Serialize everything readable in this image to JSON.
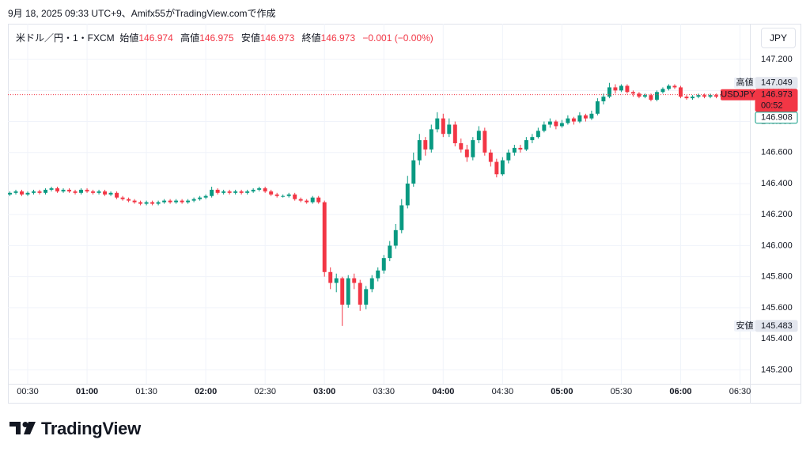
{
  "header": "9月 18, 2025 09:33 UTC+9、Amifx55がTradingView.comで作成",
  "logo": "TradingView",
  "currency_button": "JPY",
  "legend": {
    "symbol": "米ドル／円・1・FXCM",
    "open_label": "始値",
    "open": 146.974,
    "high_label": "高値",
    "high": 146.975,
    "low_label": "安値",
    "low": 146.973,
    "close_label": "終値",
    "close": 146.973,
    "change": "−0.001 (−0.00%)"
  },
  "chart_data": {
    "type": "candlestick",
    "up_color": "#089981",
    "down_color": "#f23645",
    "grid": true,
    "xlim": [
      "00:20",
      "06:35"
    ],
    "xticks": [
      "00:30",
      "01:00",
      "01:30",
      "02:00",
      "02:30",
      "03:00",
      "03:30",
      "04:00",
      "04:30",
      "05:00",
      "05:30",
      "06:00",
      "06:30"
    ],
    "ylim": [
      145.11,
      147.43
    ],
    "yticks": [
      {
        "value": 147.2,
        "label": "147.200"
      },
      {
        "value": 147.0,
        "label": "147.000"
      },
      {
        "value": 146.8,
        "label": "146.800"
      },
      {
        "value": 146.6,
        "label": "146.600"
      },
      {
        "value": 146.4,
        "label": "146.400"
      },
      {
        "value": 146.2,
        "label": "146.200"
      },
      {
        "value": 146.0,
        "label": "146.000"
      },
      {
        "value": 145.8,
        "label": "145.800"
      },
      {
        "value": 145.6,
        "label": "145.600"
      },
      {
        "value": 145.4,
        "label": "145.400"
      },
      {
        "value": 145.2,
        "label": "145.200"
      }
    ],
    "x": [
      "00:21",
      "00:24",
      "00:27",
      "00:30",
      "00:33",
      "00:36",
      "00:39",
      "00:42",
      "00:45",
      "00:48",
      "00:51",
      "00:54",
      "00:57",
      "01:00",
      "01:03",
      "01:06",
      "01:09",
      "01:12",
      "01:15",
      "01:18",
      "01:21",
      "01:24",
      "01:27",
      "01:30",
      "01:33",
      "01:36",
      "01:39",
      "01:42",
      "01:45",
      "01:48",
      "01:51",
      "01:54",
      "01:57",
      "02:00",
      "02:03",
      "02:06",
      "02:09",
      "02:12",
      "02:15",
      "02:18",
      "02:21",
      "02:24",
      "02:27",
      "02:30",
      "02:33",
      "02:36",
      "02:39",
      "02:42",
      "02:45",
      "02:48",
      "02:51",
      "02:54",
      "02:57",
      "03:00",
      "03:03",
      "03:06",
      "03:09",
      "03:12",
      "03:15",
      "03:18",
      "03:21",
      "03:24",
      "03:27",
      "03:30",
      "03:33",
      "03:36",
      "03:39",
      "03:42",
      "03:45",
      "03:48",
      "03:51",
      "03:54",
      "03:57",
      "04:00",
      "04:03",
      "04:06",
      "04:09",
      "04:12",
      "04:15",
      "04:18",
      "04:21",
      "04:24",
      "04:27",
      "04:30",
      "04:33",
      "04:36",
      "04:39",
      "04:42",
      "04:45",
      "04:48",
      "04:51",
      "04:54",
      "04:57",
      "05:00",
      "05:03",
      "05:06",
      "05:09",
      "05:12",
      "05:15",
      "05:18",
      "05:21",
      "05:24",
      "05:27",
      "05:30",
      "05:33",
      "05:36",
      "05:39",
      "05:42",
      "05:45",
      "05:48",
      "05:51",
      "05:54",
      "05:57",
      "06:00",
      "06:03",
      "06:06",
      "06:09",
      "06:12",
      "06:15",
      "06:18",
      "06:21",
      "06:24",
      "06:27",
      "06:30",
      "06:33"
    ],
    "ohlc": [
      [
        146.33,
        146.35,
        146.32,
        146.34
      ],
      [
        146.34,
        146.36,
        146.33,
        146.35
      ],
      [
        146.35,
        146.36,
        146.32,
        146.33
      ],
      [
        146.33,
        146.35,
        146.32,
        146.34
      ],
      [
        146.34,
        146.36,
        146.33,
        146.35
      ],
      [
        146.35,
        146.36,
        146.33,
        146.34
      ],
      [
        146.34,
        146.37,
        146.33,
        146.36
      ],
      [
        146.36,
        146.38,
        146.35,
        146.37
      ],
      [
        146.37,
        146.38,
        146.34,
        146.35
      ],
      [
        146.35,
        146.37,
        146.34,
        146.36
      ],
      [
        146.36,
        146.37,
        146.34,
        146.35
      ],
      [
        146.35,
        146.36,
        146.33,
        146.34
      ],
      [
        146.34,
        146.37,
        146.33,
        146.36
      ],
      [
        146.36,
        146.37,
        146.34,
        146.35
      ],
      [
        146.35,
        146.36,
        146.33,
        146.34
      ],
      [
        146.34,
        146.36,
        146.33,
        146.35
      ],
      [
        146.35,
        146.36,
        146.32,
        146.33
      ],
      [
        146.33,
        146.35,
        146.32,
        146.34
      ],
      [
        146.34,
        146.35,
        146.3,
        146.31
      ],
      [
        146.31,
        146.32,
        146.29,
        146.3
      ],
      [
        146.3,
        146.31,
        146.28,
        146.29
      ],
      [
        146.29,
        146.3,
        146.27,
        146.28
      ],
      [
        146.28,
        146.29,
        146.26,
        146.27
      ],
      [
        146.27,
        146.29,
        146.26,
        146.28
      ],
      [
        146.28,
        146.29,
        146.26,
        146.27
      ],
      [
        146.27,
        146.29,
        146.26,
        146.28
      ],
      [
        146.28,
        146.3,
        146.27,
        146.29
      ],
      [
        146.29,
        146.3,
        146.27,
        146.28
      ],
      [
        146.28,
        146.3,
        146.27,
        146.29
      ],
      [
        146.29,
        146.3,
        146.27,
        146.28
      ],
      [
        146.28,
        146.3,
        146.27,
        146.29
      ],
      [
        146.29,
        146.31,
        146.28,
        146.3
      ],
      [
        146.3,
        146.32,
        146.29,
        146.31
      ],
      [
        146.31,
        146.33,
        146.3,
        146.32
      ],
      [
        146.32,
        146.38,
        146.31,
        146.36
      ],
      [
        146.36,
        146.37,
        146.33,
        146.34
      ],
      [
        146.34,
        146.36,
        146.33,
        146.35
      ],
      [
        146.35,
        146.36,
        146.33,
        146.34
      ],
      [
        146.34,
        146.36,
        146.33,
        146.35
      ],
      [
        146.35,
        146.36,
        146.33,
        146.34
      ],
      [
        146.34,
        146.36,
        146.33,
        146.35
      ],
      [
        146.35,
        146.37,
        146.34,
        146.36
      ],
      [
        146.36,
        146.38,
        146.35,
        146.37
      ],
      [
        146.37,
        146.38,
        146.34,
        146.35
      ],
      [
        146.35,
        146.36,
        146.32,
        146.33
      ],
      [
        146.33,
        146.34,
        146.31,
        146.32
      ],
      [
        146.32,
        146.33,
        146.31,
        146.32
      ],
      [
        146.32,
        146.34,
        146.31,
        146.33
      ],
      [
        146.33,
        146.34,
        146.29,
        146.3
      ],
      [
        146.3,
        146.31,
        146.28,
        146.29
      ],
      [
        146.29,
        146.3,
        146.27,
        146.28
      ],
      [
        146.28,
        146.32,
        146.27,
        146.31
      ],
      [
        146.31,
        146.32,
        146.27,
        146.28
      ],
      [
        146.28,
        146.29,
        145.8,
        145.83
      ],
      [
        145.83,
        145.86,
        145.72,
        145.76
      ],
      [
        145.76,
        145.82,
        145.7,
        145.79
      ],
      [
        145.79,
        145.8,
        145.483,
        145.62
      ],
      [
        145.62,
        145.81,
        145.6,
        145.79
      ],
      [
        145.79,
        145.82,
        145.72,
        145.76
      ],
      [
        145.76,
        145.78,
        145.58,
        145.62
      ],
      [
        145.62,
        145.74,
        145.59,
        145.72
      ],
      [
        145.72,
        145.81,
        145.7,
        145.79
      ],
      [
        145.79,
        145.86,
        145.77,
        145.84
      ],
      [
        145.84,
        145.94,
        145.82,
        145.92
      ],
      [
        145.92,
        146.03,
        145.9,
        146.0
      ],
      [
        146.0,
        146.14,
        145.98,
        146.1
      ],
      [
        146.1,
        146.3,
        146.08,
        146.26
      ],
      [
        146.26,
        146.45,
        146.24,
        146.4
      ],
      [
        146.4,
        146.6,
        146.38,
        146.55
      ],
      [
        146.55,
        146.72,
        146.52,
        146.68
      ],
      [
        146.68,
        146.7,
        146.58,
        146.62
      ],
      [
        146.62,
        146.78,
        146.6,
        146.75
      ],
      [
        146.75,
        146.86,
        146.73,
        146.82
      ],
      [
        146.82,
        146.85,
        146.7,
        146.72
      ],
      [
        146.72,
        146.82,
        146.7,
        146.78
      ],
      [
        146.78,
        146.8,
        146.64,
        146.66
      ],
      [
        146.66,
        146.69,
        146.6,
        146.62
      ],
      [
        146.62,
        146.65,
        146.54,
        146.57
      ],
      [
        146.57,
        146.7,
        146.55,
        146.68
      ],
      [
        146.68,
        146.77,
        146.66,
        146.74
      ],
      [
        146.74,
        146.76,
        146.58,
        146.6
      ],
      [
        146.6,
        146.62,
        146.51,
        146.54
      ],
      [
        146.54,
        146.56,
        146.44,
        146.46
      ],
      [
        146.46,
        146.57,
        146.45,
        146.55
      ],
      [
        146.55,
        146.62,
        146.53,
        146.6
      ],
      [
        146.6,
        146.65,
        146.58,
        146.63
      ],
      [
        146.63,
        146.65,
        146.6,
        146.62
      ],
      [
        146.62,
        146.7,
        146.61,
        146.68
      ],
      [
        146.68,
        146.72,
        146.66,
        146.7
      ],
      [
        146.7,
        146.76,
        146.69,
        146.74
      ],
      [
        146.74,
        146.8,
        146.73,
        146.78
      ],
      [
        146.78,
        146.82,
        146.76,
        146.8
      ],
      [
        146.8,
        146.81,
        146.75,
        146.77
      ],
      [
        146.77,
        146.81,
        146.76,
        146.79
      ],
      [
        146.79,
        146.84,
        146.78,
        146.82
      ],
      [
        146.82,
        146.83,
        146.78,
        146.8
      ],
      [
        146.8,
        146.86,
        146.79,
        146.84
      ],
      [
        146.84,
        146.85,
        146.8,
        146.82
      ],
      [
        146.82,
        146.87,
        146.81,
        146.85
      ],
      [
        146.85,
        146.95,
        146.84,
        146.93
      ],
      [
        146.93,
        146.98,
        146.91,
        146.96
      ],
      [
        146.96,
        147.049,
        146.95,
        147.02
      ],
      [
        147.02,
        147.04,
        146.98,
        147.0
      ],
      [
        147.0,
        147.04,
        146.99,
        147.03
      ],
      [
        147.03,
        147.04,
        146.98,
        146.99
      ],
      [
        146.99,
        147.0,
        146.96,
        146.98
      ],
      [
        146.98,
        146.99,
        146.95,
        146.96
      ],
      [
        146.96,
        146.98,
        146.95,
        146.97
      ],
      [
        146.97,
        146.98,
        146.93,
        146.94
      ],
      [
        146.94,
        147.0,
        146.93,
        146.99
      ],
      [
        146.99,
        147.02,
        146.98,
        147.01
      ],
      [
        147.01,
        147.04,
        147.0,
        147.03
      ],
      [
        147.03,
        147.04,
        147.01,
        147.02
      ],
      [
        147.02,
        147.03,
        146.95,
        146.96
      ],
      [
        146.96,
        146.97,
        146.94,
        146.95
      ],
      [
        146.95,
        146.97,
        146.94,
        146.96
      ],
      [
        146.96,
        146.98,
        146.95,
        146.97
      ],
      [
        146.97,
        146.98,
        146.95,
        146.96
      ],
      [
        146.96,
        146.98,
        146.95,
        146.97
      ],
      [
        146.97,
        146.98,
        146.95,
        146.96
      ],
      [
        146.96,
        146.98,
        146.95,
        146.97
      ],
      [
        146.97,
        146.98,
        146.95,
        146.96
      ],
      [
        146.96,
        146.98,
        146.95,
        146.97
      ],
      [
        146.97,
        146.98,
        146.96,
        146.97
      ],
      [
        146.974,
        146.975,
        146.973,
        146.973
      ]
    ],
    "price_line": {
      "value": 146.973,
      "color": "#f23645"
    },
    "price_labels": [
      {
        "name": "高値",
        "value": 147.049,
        "color": "#e3e6ee"
      },
      {
        "name": "USDJPY",
        "value": 146.973,
        "countdown": "00:52",
        "color": "#f23645"
      },
      {
        "value": 146.908,
        "color": "#089981"
      },
      {
        "name": "安値",
        "value": 145.483,
        "color": "#e3e6ee"
      }
    ]
  }
}
